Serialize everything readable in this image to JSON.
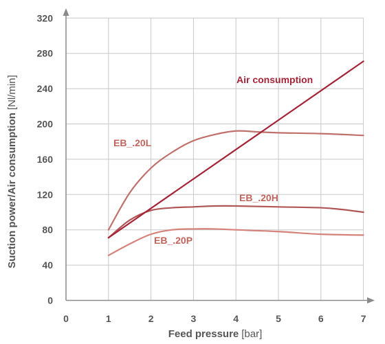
{
  "chart_data": {
    "type": "line",
    "xlabel": {
      "main": "Feed pressure",
      "unit": "[bar]"
    },
    "ylabel": {
      "main": "Suction power/Air consumption",
      "unit": "[Nl/min]"
    },
    "x_ticks": [
      0,
      1,
      2,
      3,
      4,
      5,
      6,
      7
    ],
    "y_ticks": [
      0,
      40,
      80,
      120,
      160,
      200,
      240,
      280,
      320
    ],
    "xlim": [
      0,
      7
    ],
    "ylim": [
      0,
      320
    ],
    "grid": true,
    "legend": "inline labels",
    "series": [
      {
        "name": "EB_.20L",
        "color": "#c0706a",
        "points": [
          [
            1,
            80
          ],
          [
            1.5,
            122
          ],
          [
            2,
            150
          ],
          [
            2.5,
            168
          ],
          [
            3,
            181
          ],
          [
            3.5,
            188
          ],
          [
            4,
            192
          ],
          [
            4.5,
            191
          ],
          [
            5,
            190
          ],
          [
            6,
            189
          ],
          [
            7,
            187
          ]
        ]
      },
      {
        "name": "EB_.20H",
        "color": "#b05555",
        "points": [
          [
            1,
            71
          ],
          [
            1.5,
            91
          ],
          [
            2,
            102
          ],
          [
            2.5,
            105
          ],
          [
            3,
            106
          ],
          [
            3.5,
            107
          ],
          [
            4,
            107
          ],
          [
            5,
            106
          ],
          [
            6,
            105
          ],
          [
            6.5,
            103
          ],
          [
            7,
            100
          ]
        ]
      },
      {
        "name": "EB_.20P",
        "color": "#d4827a",
        "points": [
          [
            1,
            51
          ],
          [
            1.5,
            64
          ],
          [
            2,
            75
          ],
          [
            2.5,
            80
          ],
          [
            3,
            81
          ],
          [
            3.5,
            81
          ],
          [
            4,
            80
          ],
          [
            5,
            78
          ],
          [
            6,
            75
          ],
          [
            7,
            74
          ]
        ]
      },
      {
        "name": "Air consumption",
        "color": "#a52337",
        "points": [
          [
            1,
            71
          ],
          [
            7,
            271
          ]
        ]
      }
    ]
  }
}
